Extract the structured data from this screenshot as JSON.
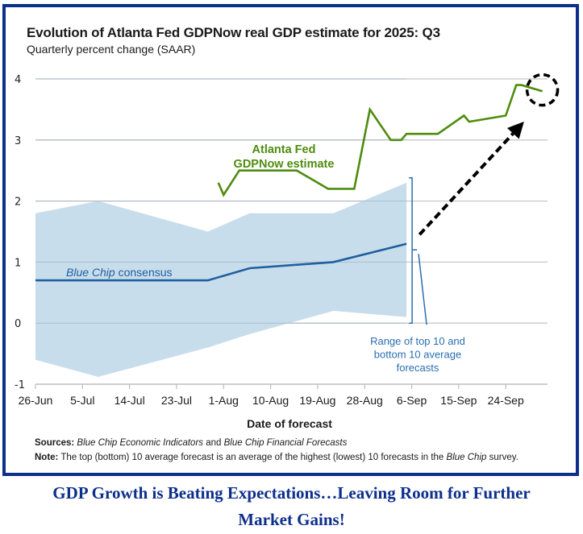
{
  "chart_data": {
    "type": "line",
    "title": "Evolution of Atlanta Fed GDPNow real GDP estimate for 2025: Q3",
    "subtitle": "Quarterly percent change (SAAR)",
    "xlabel": "Date of forecast",
    "ylabel": "",
    "ylim": [
      -1,
      4
    ],
    "yticks": [
      4,
      3,
      2,
      1,
      0,
      -1
    ],
    "xlim_days": [
      0,
      100
    ],
    "x_origin": "26-Jun",
    "xticks": [
      {
        "label": "26-Jun",
        "day": 0
      },
      {
        "label": "5-Jul",
        "day": 9
      },
      {
        "label": "14-Jul",
        "day": 18
      },
      {
        "label": "23-Jul",
        "day": 27
      },
      {
        "label": "1-Aug",
        "day": 36
      },
      {
        "label": "10-Aug",
        "day": 45
      },
      {
        "label": "19-Aug",
        "day": 54
      },
      {
        "label": "28-Aug",
        "day": 63
      },
      {
        "label": "6-Sep",
        "day": 72
      },
      {
        "label": "15-Sep",
        "day": 81
      },
      {
        "label": "24-Sep",
        "day": 90
      }
    ],
    "grid": true,
    "series": [
      {
        "name": "Atlanta Fed GDPNow estimate",
        "label_lines": [
          "Atlanta Fed",
          "GDPNow estimate"
        ],
        "color": "#4e8c0e",
        "points": [
          {
            "day": 35,
            "date": "31-Jul",
            "value": 2.3
          },
          {
            "day": 36,
            "date": "1-Aug",
            "value": 2.1
          },
          {
            "day": 39,
            "date": "4-Aug",
            "value": 2.5
          },
          {
            "day": 50,
            "date": "15-Aug",
            "value": 2.5
          },
          {
            "day": 56,
            "date": "21-Aug",
            "value": 2.2
          },
          {
            "day": 61,
            "date": "26-Aug",
            "value": 2.2
          },
          {
            "day": 64,
            "date": "29-Aug",
            "value": 3.5
          },
          {
            "day": 68,
            "date": "2-Sep",
            "value": 3.0
          },
          {
            "day": 70,
            "date": "4-Sep",
            "value": 3.0
          },
          {
            "day": 71,
            "date": "5-Sep",
            "value": 3.1
          },
          {
            "day": 77,
            "date": "11-Sep",
            "value": 3.1
          },
          {
            "day": 82,
            "date": "16-Sep",
            "value": 3.4
          },
          {
            "day": 83,
            "date": "17-Sep",
            "value": 3.3
          },
          {
            "day": 90,
            "date": "24-Sep",
            "value": 3.4
          },
          {
            "day": 92,
            "date": "26-Sep",
            "value": 3.9
          },
          {
            "day": 93,
            "date": "27-Sep",
            "value": 3.9
          },
          {
            "day": 97,
            "date": "1-Oct",
            "value": 3.8
          }
        ]
      },
      {
        "name": "Blue Chip consensus",
        "label_italic": "Blue Chip",
        "label_rest": " consensus",
        "color": "#1f5fa0",
        "points": [
          {
            "day": 0,
            "date": "26-Jun",
            "value": 0.7
          },
          {
            "day": 33,
            "date": "29-Jul",
            "value": 0.7
          },
          {
            "day": 41,
            "date": "6-Aug",
            "value": 0.9
          },
          {
            "day": 57,
            "date": "22-Aug",
            "value": 1.0
          },
          {
            "day": 71,
            "date": "5-Sep",
            "value": 1.3
          }
        ]
      }
    ],
    "band": {
      "name": "Range of top 10 and bottom 10 average forecasts",
      "label_lines": [
        "Range of top 10 and",
        "bottom 10 average",
        "forecasts"
      ],
      "color": "#c5dbea",
      "label_color": "#2a6fb0",
      "top": [
        {
          "day": 0,
          "value": 1.8
        },
        {
          "day": 12,
          "value": 2.0
        },
        {
          "day": 33,
          "value": 1.5
        },
        {
          "day": 41,
          "value": 1.8
        },
        {
          "day": 57,
          "value": 1.8
        },
        {
          "day": 71,
          "value": 2.3
        }
      ],
      "bottom": [
        {
          "day": 0,
          "value": -0.6
        },
        {
          "day": 12,
          "value": -0.88
        },
        {
          "day": 33,
          "value": -0.4
        },
        {
          "day": 41,
          "value": -0.18
        },
        {
          "day": 57,
          "value": 0.2
        },
        {
          "day": 71,
          "value": 0.1
        }
      ]
    },
    "annotations": [
      {
        "type": "dashed-arrow",
        "from": {
          "day": 73.5,
          "value": 1.45
        },
        "to": {
          "day": 93.5,
          "value": 3.3
        }
      },
      {
        "type": "dashed-circle",
        "center": {
          "day": 97,
          "value": 3.82
        }
      }
    ]
  },
  "sources": {
    "label": "Sources:",
    "italic1": "Blue Chip Economic Indicators",
    "mid": " and ",
    "italic2": "Blue Chip Financial Forecasts"
  },
  "note": {
    "label": "Note:",
    "text1": " The top (bottom) 10 average forecast is an average of the highest (lowest) 10 forecasts in the ",
    "italic": "Blue Chip",
    "text2": " survey."
  },
  "caption": {
    "line1": "GDP Growth is Beating Expectations…Leaving Room for Further",
    "line2": "Market Gains!"
  },
  "colors": {
    "frame": "#0d2f8c",
    "caption": "#0d2f8c"
  }
}
